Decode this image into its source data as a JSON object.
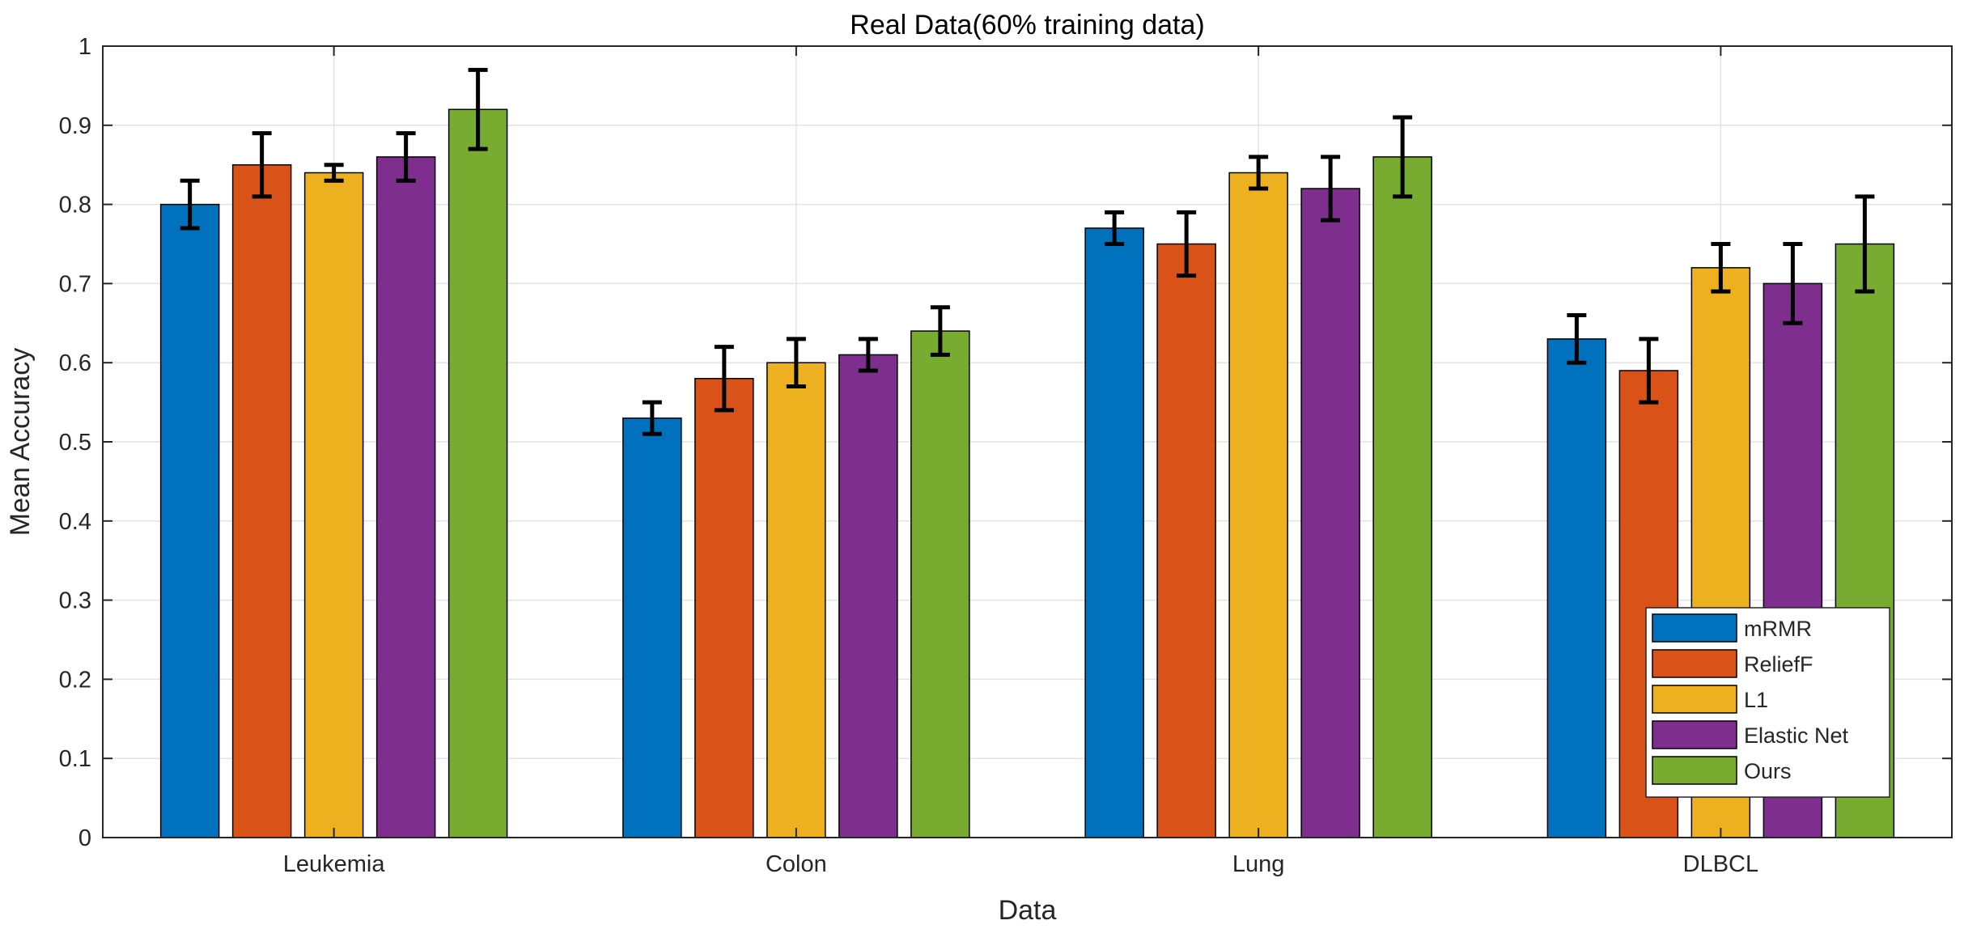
{
  "chart_data": {
    "type": "bar",
    "title": "Real Data(60% training data)",
    "xlabel": "Data",
    "ylabel": "Mean Accuracy",
    "ylim": [
      0,
      1
    ],
    "yticks": [
      0,
      0.1,
      0.2,
      0.3,
      0.4,
      0.5,
      0.6,
      0.7,
      0.8,
      0.9,
      1
    ],
    "ytick_labels": [
      "0",
      "0.1",
      "0.2",
      "0.3",
      "0.4",
      "0.5",
      "0.6",
      "0.7",
      "0.8",
      "0.9",
      "1"
    ],
    "grid": true,
    "legend_position": "bottom-right",
    "categories": [
      "Leukemia",
      "Colon",
      "Lung",
      "DLBCL"
    ],
    "series": [
      {
        "name": "mRMR",
        "color": "#0072BD",
        "values": [
          0.8,
          0.53,
          0.77,
          0.63
        ],
        "errors": [
          0.03,
          0.02,
          0.02,
          0.03
        ]
      },
      {
        "name": "ReliefF",
        "color": "#D95319",
        "values": [
          0.85,
          0.58,
          0.75,
          0.59
        ],
        "errors": [
          0.04,
          0.04,
          0.04,
          0.04
        ]
      },
      {
        "name": "L1",
        "color": "#EDB120",
        "values": [
          0.84,
          0.6,
          0.84,
          0.72
        ],
        "errors": [
          0.01,
          0.03,
          0.02,
          0.03
        ]
      },
      {
        "name": "Elastic Net",
        "color": "#7E2F8E",
        "values": [
          0.86,
          0.61,
          0.82,
          0.7
        ],
        "errors": [
          0.03,
          0.02,
          0.04,
          0.05
        ]
      },
      {
        "name": "Ours",
        "color": "#77AC30",
        "values": [
          0.92,
          0.64,
          0.86,
          0.75
        ],
        "errors": [
          0.05,
          0.03,
          0.05,
          0.06
        ]
      }
    ]
  }
}
